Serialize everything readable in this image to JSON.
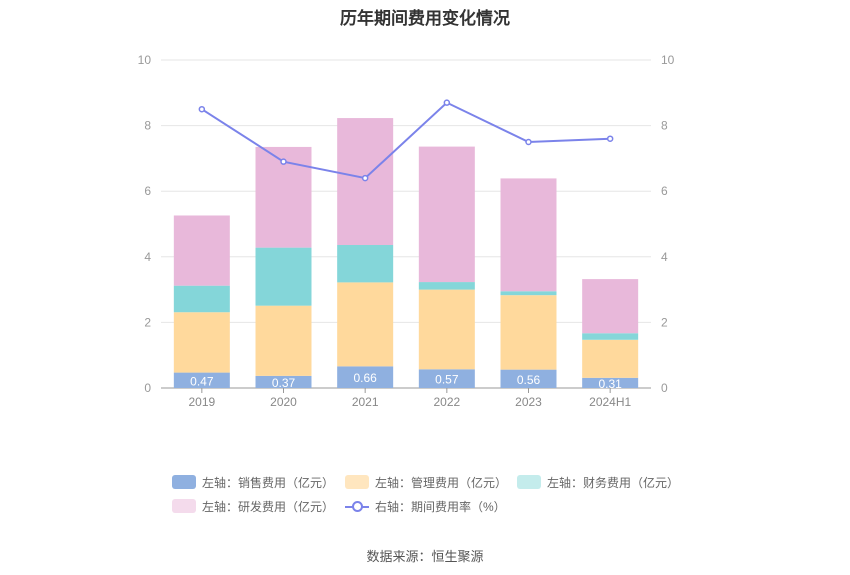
{
  "chart_data": {
    "type": "bar",
    "title": "历年期间费用变化情况",
    "categories": [
      "2019",
      "2020",
      "2021",
      "2022",
      "2023",
      "2024H1"
    ],
    "left_axis": {
      "ylim": [
        0,
        10
      ],
      "ticks": [
        0,
        2,
        4,
        6,
        8,
        10
      ]
    },
    "right_axis": {
      "ylim": [
        0,
        10
      ],
      "ticks": [
        0,
        2,
        4,
        6,
        8,
        10
      ]
    },
    "grid": true,
    "legend_position": "bottom",
    "series": [
      {
        "name": "左轴：销售费用（亿元）",
        "kind": "bar",
        "stack": "total",
        "axis": "left",
        "color": "#8fb0e0",
        "values": [
          0.47,
          0.37,
          0.66,
          0.57,
          0.56,
          0.31
        ],
        "labels": [
          "0.47",
          "0.37",
          "0.66",
          "0.57",
          "0.56",
          "0.31"
        ]
      },
      {
        "name": "左轴：管理费用（亿元）",
        "kind": "bar",
        "stack": "total",
        "axis": "left",
        "color": "#ffd99c",
        "values": [
          1.84,
          2.14,
          2.56,
          2.43,
          2.27,
          1.16
        ]
      },
      {
        "name": "左轴：财务费用（亿元）",
        "kind": "bar",
        "stack": "total",
        "axis": "left",
        "color": "#84d6d9",
        "values": [
          0.81,
          1.77,
          1.14,
          0.23,
          0.12,
          0.2
        ]
      },
      {
        "name": "左轴：研发费用（亿元）",
        "kind": "bar",
        "stack": "total",
        "axis": "left",
        "color": "#e8b8da",
        "values": [
          2.14,
          3.07,
          3.87,
          4.13,
          3.44,
          1.65
        ]
      },
      {
        "name": "右轴：期间费用率（%）",
        "kind": "line",
        "axis": "right",
        "color": "#7b83ea",
        "values": [
          8.5,
          6.9,
          6.4,
          8.7,
          7.5,
          7.6
        ]
      }
    ]
  },
  "legend": {
    "items": [
      {
        "label": "左轴：销售费用（亿元）",
        "color": "#8fb0e0"
      },
      {
        "label": "左轴：管理费用（亿元）",
        "color": "#ffe6bf"
      },
      {
        "label": "左轴：财务费用（亿元）",
        "color": "#c4ecec"
      },
      {
        "label": "左轴：研发费用（亿元）",
        "color": "#f4dbec"
      },
      {
        "label": "右轴：期间费用率（%）",
        "color": "#7b83ea"
      }
    ]
  },
  "source": "数据来源：恒生聚源"
}
